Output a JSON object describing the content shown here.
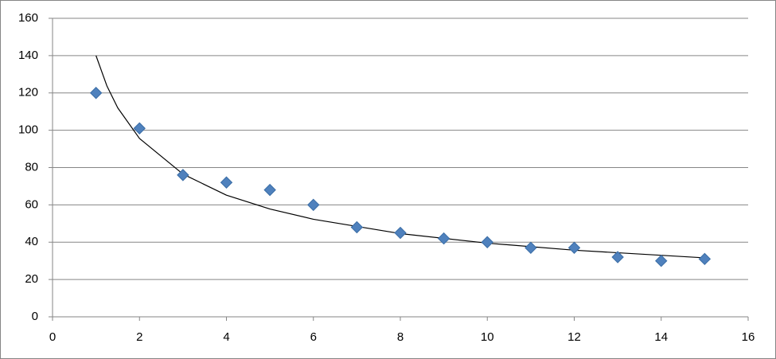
{
  "chart_data": {
    "type": "scatter",
    "series": [
      {
        "color": "#4f81bd",
        "x": [
          1,
          2,
          3,
          4,
          5,
          6,
          7,
          8,
          9,
          10,
          11,
          12,
          13,
          14,
          15
        ],
        "values": [
          120,
          101,
          76,
          72,
          68,
          60,
          48,
          45,
          42,
          40,
          37,
          37,
          32,
          30,
          31
        ]
      }
    ],
    "trendline": {
      "color": "#000000",
      "x": [
        1,
        1.25,
        1.5,
        2,
        3,
        4,
        5,
        6,
        8,
        10,
        12,
        15
      ],
      "values": [
        140,
        123.8,
        112,
        95.6,
        76.5,
        65.2,
        57.8,
        52.3,
        44.6,
        39.5,
        35.7,
        31.6
      ]
    },
    "xlim": [
      0,
      16
    ],
    "xticks": [
      0,
      2,
      4,
      6,
      8,
      10,
      12,
      14,
      16
    ],
    "ylim": [
      0,
      160
    ],
    "yticks": [
      0,
      20,
      40,
      60,
      80,
      100,
      120,
      140,
      160
    ],
    "grid": true
  }
}
